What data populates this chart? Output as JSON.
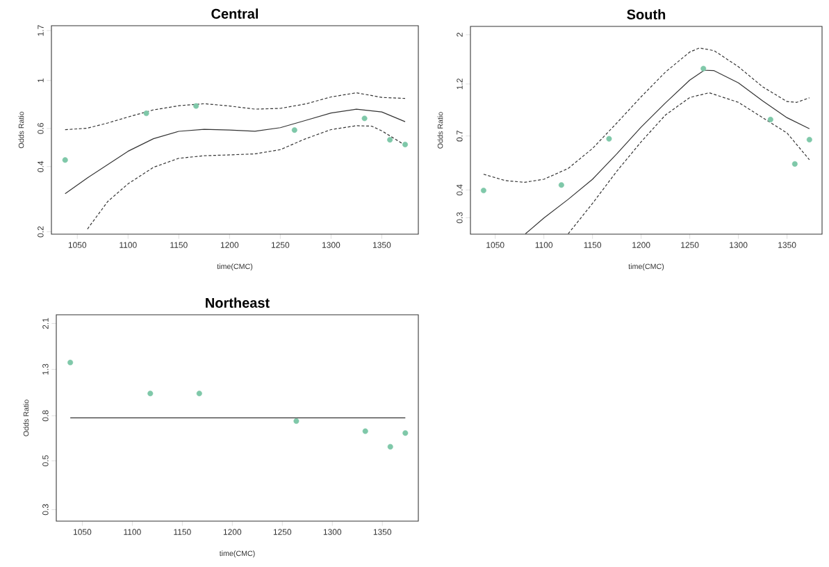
{
  "chart_data": [
    {
      "type": "line",
      "title": "Central",
      "xlabel": "time(CMC)",
      "ylabel": "Odds Ratio",
      "log": "y",
      "xlim": [
        1024.5,
        1386
      ],
      "xticks": [
        1050,
        1100,
        1150,
        1200,
        1250,
        1300,
        1350
      ],
      "ylim": [
        0.195,
        1.79
      ],
      "yticks": [
        0.2,
        0.4,
        0.6,
        1,
        1.7
      ],
      "series": [
        {
          "type": "scatter",
          "marker": "circle",
          "color": "#7fc8a9",
          "x": [
            1038,
            1118,
            1167,
            1264,
            1333,
            1358,
            1373
          ],
          "values": [
            0.429,
            0.705,
            0.762,
            0.59,
            0.668,
            0.532,
            0.506
          ]
        },
        {
          "type": "line",
          "line_style": "solid",
          "color": "#333333",
          "x": [
            1038,
            1060,
            1100,
            1125,
            1150,
            1175,
            1200,
            1225,
            1250,
            1275,
            1300,
            1325,
            1350,
            1373
          ],
          "values": [
            0.3,
            0.355,
            0.471,
            0.538,
            0.582,
            0.595,
            0.59,
            0.583,
            0.605,
            0.654,
            0.707,
            0.737,
            0.715,
            0.645
          ]
        },
        {
          "type": "line",
          "line_style": "dashed",
          "color": "#333333",
          "x": [
            1038,
            1060,
            1080,
            1100,
            1125,
            1150,
            1175,
            1200,
            1225,
            1250,
            1275,
            1300,
            1325,
            1350,
            1373
          ],
          "values": [
            0.592,
            0.602,
            0.636,
            0.678,
            0.731,
            0.764,
            0.781,
            0.762,
            0.737,
            0.743,
            0.779,
            0.839,
            0.877,
            0.835,
            0.826
          ]
        },
        {
          "type": "line",
          "line_style": "dashed",
          "color": "#333333",
          "x": [
            1060,
            1080,
            1100,
            1125,
            1150,
            1175,
            1200,
            1225,
            1250,
            1275,
            1300,
            1325,
            1340,
            1350,
            1373
          ],
          "values": [
            0.206,
            0.276,
            0.333,
            0.397,
            0.437,
            0.449,
            0.453,
            0.458,
            0.479,
            0.538,
            0.593,
            0.618,
            0.615,
            0.585,
            0.502
          ]
        }
      ]
    },
    {
      "type": "line",
      "title": "South",
      "xlabel": "time(CMC)",
      "ylabel": "Odds Ratio",
      "log": "y",
      "xlim": [
        1024.5,
        1386
      ],
      "xticks": [
        1050,
        1100,
        1150,
        1200,
        1250,
        1300,
        1350
      ],
      "ylim": [
        0.253,
        2.18
      ],
      "yticks": [
        0.3,
        0.4,
        0.7,
        1.2,
        2
      ],
      "series": [
        {
          "type": "scatter",
          "marker": "circle",
          "color": "#7fc8a9",
          "x": [
            1038,
            1118,
            1167,
            1264,
            1333,
            1358,
            1373
          ],
          "values": [
            0.398,
            0.421,
            0.68,
            1.408,
            0.83,
            0.524,
            0.674
          ]
        },
        {
          "type": "line",
          "line_style": "solid",
          "color": "#333333",
          "x": [
            1081,
            1100,
            1125,
            1150,
            1175,
            1200,
            1225,
            1250,
            1265,
            1275,
            1300,
            1325,
            1350,
            1373
          ],
          "values": [
            0.254,
            0.299,
            0.363,
            0.447,
            0.582,
            0.768,
            0.986,
            1.249,
            1.384,
            1.378,
            1.214,
            1.006,
            0.846,
            0.755
          ]
        },
        {
          "type": "line",
          "line_style": "dashed",
          "color": "#333333",
          "x": [
            1038,
            1060,
            1080,
            1100,
            1125,
            1150,
            1175,
            1200,
            1225,
            1250,
            1260,
            1275,
            1300,
            1325,
            1350,
            1360,
            1373
          ],
          "values": [
            0.471,
            0.441,
            0.433,
            0.447,
            0.5,
            0.615,
            0.801,
            1.051,
            1.358,
            1.672,
            1.744,
            1.696,
            1.435,
            1.165,
            1.0,
            0.992,
            1.04
          ]
        },
        {
          "type": "line",
          "line_style": "dashed",
          "color": "#333333",
          "x": [
            1125,
            1150,
            1175,
            1200,
            1225,
            1250,
            1270,
            1300,
            1325,
            1350,
            1373
          ],
          "values": [
            0.254,
            0.348,
            0.486,
            0.659,
            0.87,
            1.043,
            1.096,
            0.992,
            0.846,
            0.722,
            0.547
          ]
        }
      ]
    },
    {
      "type": "line",
      "title": "Northeast",
      "xlabel": "time(CMC)",
      "ylabel": "Odds Ratio",
      "log": "y",
      "xlim": [
        1024,
        1386
      ],
      "xticks": [
        1050,
        1100,
        1150,
        1200,
        1250,
        1300,
        1350
      ],
      "ylim": [
        0.266,
        2.3
      ],
      "yticks": [
        0.3,
        0.5,
        0.8,
        1.3,
        2.1
      ],
      "series": [
        {
          "type": "scatter",
          "marker": "circle",
          "color": "#7fc8a9",
          "x": [
            1038,
            1118,
            1167,
            1264,
            1333,
            1358,
            1373
          ],
          "values": [
            1.397,
            1.01,
            1.01,
            0.757,
            0.681,
            0.579,
            0.668
          ]
        },
        {
          "type": "line",
          "line_style": "solid",
          "color": "#333333",
          "x": [
            1038,
            1373
          ],
          "values": [
            0.783,
            0.783
          ]
        }
      ]
    }
  ]
}
